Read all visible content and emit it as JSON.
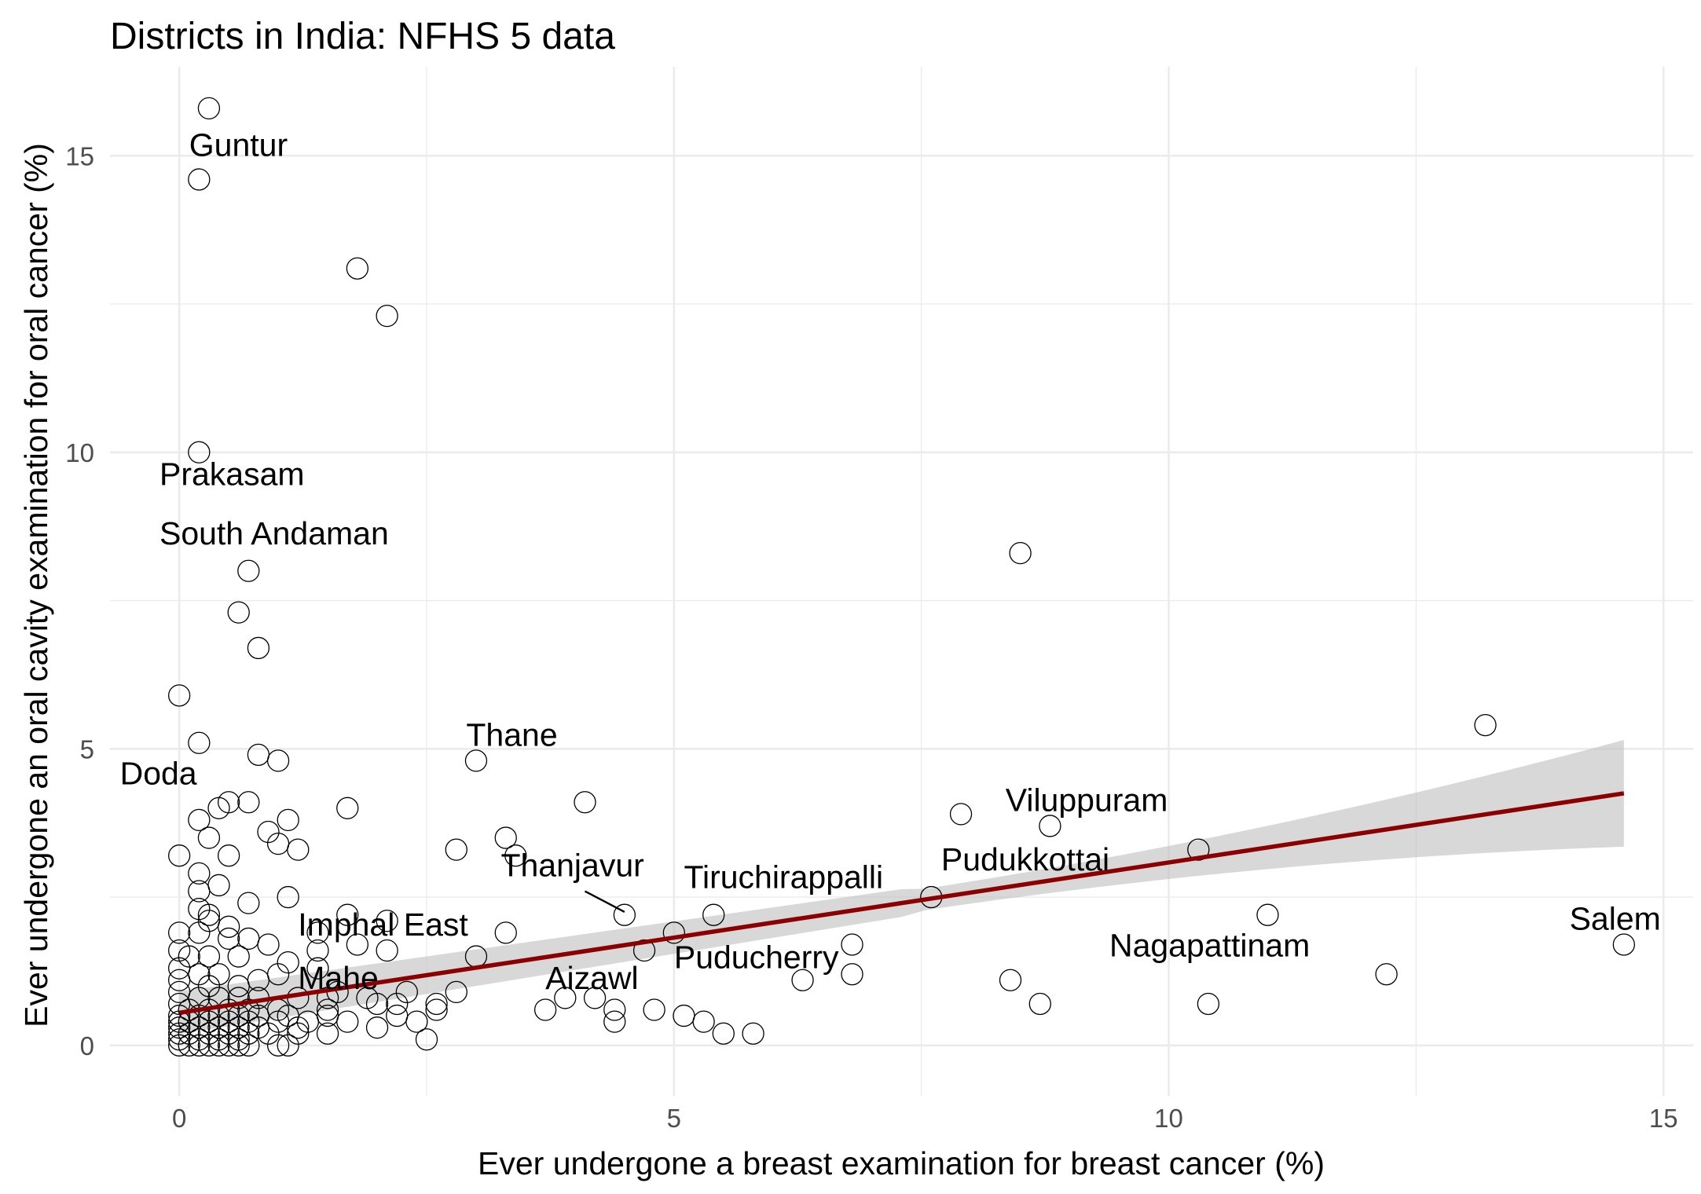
{
  "chart_data": {
    "type": "scatter",
    "title": "Districts in India: NFHS 5 data",
    "xlabel": "Ever undergone a breast examination for breast cancer (%)",
    "ylabel": "Ever undergone an oral cavity examination for oral cancer (%)",
    "xlim": [
      -0.7,
      15.3
    ],
    "ylim": [
      -0.85,
      16.5
    ],
    "x_ticks": [
      0,
      5,
      10,
      15
    ],
    "x_tick_labels": [
      "0",
      "5",
      "10",
      "15"
    ],
    "y_ticks": [
      0,
      5,
      10,
      15
    ],
    "y_tick_labels": [
      "0",
      "5",
      "10",
      "15"
    ],
    "grid": true,
    "colors": {
      "points": "#000000",
      "fit_line": "#8b0000",
      "confidence_band": "#bebebe",
      "grid": "#ebebeb",
      "tick_labels": "#4d4d4d"
    },
    "fit": {
      "method": "linear",
      "x_range": [
        0,
        14.6
      ],
      "intercept": 0.55,
      "slope": 0.2534,
      "se_at_min": 0.18,
      "se_at_max": 0.9
    },
    "points": [
      [
        0.3,
        15.8
      ],
      [
        0.2,
        14.6
      ],
      [
        1.8,
        13.1
      ],
      [
        2.1,
        12.3
      ],
      [
        0.2,
        10.0
      ],
      [
        8.5,
        8.3
      ],
      [
        0.7,
        8.0
      ],
      [
        0.6,
        7.3
      ],
      [
        0.8,
        6.7
      ],
      [
        0.0,
        5.9
      ],
      [
        0.2,
        5.1
      ],
      [
        13.2,
        5.4
      ],
      [
        3.0,
        4.8
      ],
      [
        0.8,
        4.9
      ],
      [
        1.0,
        4.8
      ],
      [
        0.4,
        4.0
      ],
      [
        0.5,
        4.1
      ],
      [
        0.7,
        4.1
      ],
      [
        0.2,
        3.8
      ],
      [
        0.3,
        3.5
      ],
      [
        1.1,
        3.8
      ],
      [
        1.7,
        4.0
      ],
      [
        4.1,
        4.1
      ],
      [
        7.9,
        3.9
      ],
      [
        8.8,
        3.7
      ],
      [
        0.9,
        3.6
      ],
      [
        1.0,
        3.4
      ],
      [
        1.2,
        3.3
      ],
      [
        0.0,
        3.2
      ],
      [
        0.5,
        3.2
      ],
      [
        2.8,
        3.3
      ],
      [
        3.3,
        3.5
      ],
      [
        3.4,
        3.2
      ],
      [
        10.3,
        3.3
      ],
      [
        0.2,
        2.9
      ],
      [
        0.4,
        2.7
      ],
      [
        0.2,
        2.6
      ],
      [
        1.1,
        2.5
      ],
      [
        0.7,
        2.4
      ],
      [
        7.6,
        2.5
      ],
      [
        0.2,
        2.3
      ],
      [
        0.3,
        2.1
      ],
      [
        0.3,
        2.2
      ],
      [
        1.7,
        2.2
      ],
      [
        2.1,
        2.1
      ],
      [
        4.5,
        2.2
      ],
      [
        5.4,
        2.2
      ],
      [
        11.0,
        2.2
      ],
      [
        0.5,
        2.0
      ],
      [
        0.2,
        1.9
      ],
      [
        0.0,
        1.9
      ],
      [
        3.3,
        1.9
      ],
      [
        5.0,
        1.9
      ],
      [
        1.4,
        1.9
      ],
      [
        0.5,
        1.8
      ],
      [
        0.7,
        1.8
      ],
      [
        0.9,
        1.7
      ],
      [
        1.4,
        1.6
      ],
      [
        1.8,
        1.7
      ],
      [
        2.1,
        1.6
      ],
      [
        6.8,
        1.7
      ],
      [
        14.6,
        1.7
      ],
      [
        4.7,
        1.6
      ],
      [
        3.0,
        1.5
      ],
      [
        0.0,
        1.6
      ],
      [
        0.1,
        1.5
      ],
      [
        0.3,
        1.5
      ],
      [
        0.6,
        1.5
      ],
      [
        1.1,
        1.4
      ],
      [
        0.0,
        1.3
      ],
      [
        0.2,
        1.2
      ],
      [
        0.4,
        1.2
      ],
      [
        1.0,
        1.2
      ],
      [
        1.4,
        1.3
      ],
      [
        0.0,
        1.1
      ],
      [
        0.3,
        1.0
      ],
      [
        0.6,
        1.0
      ],
      [
        0.8,
        1.1
      ],
      [
        6.3,
        1.1
      ],
      [
        6.8,
        1.2
      ],
      [
        8.4,
        1.1
      ],
      [
        12.2,
        1.2
      ],
      [
        2.8,
        0.9
      ],
      [
        2.3,
        0.9
      ],
      [
        1.6,
        0.9
      ],
      [
        0.0,
        0.9
      ],
      [
        0.2,
        0.8
      ],
      [
        0.4,
        0.8
      ],
      [
        0.6,
        0.8
      ],
      [
        0.8,
        0.8
      ],
      [
        1.2,
        0.8
      ],
      [
        1.5,
        0.8
      ],
      [
        1.9,
        0.8
      ],
      [
        2.2,
        0.7
      ],
      [
        2.6,
        0.7
      ],
      [
        3.9,
        0.8
      ],
      [
        4.2,
        0.8
      ],
      [
        8.7,
        0.7
      ],
      [
        10.4,
        0.7
      ],
      [
        0.0,
        0.7
      ],
      [
        0.1,
        0.6
      ],
      [
        0.3,
        0.6
      ],
      [
        0.5,
        0.6
      ],
      [
        0.7,
        0.6
      ],
      [
        1.0,
        0.6
      ],
      [
        1.5,
        0.6
      ],
      [
        2.0,
        0.7
      ],
      [
        2.6,
        0.6
      ],
      [
        3.7,
        0.6
      ],
      [
        4.4,
        0.6
      ],
      [
        4.8,
        0.6
      ],
      [
        5.1,
        0.5
      ],
      [
        0.0,
        0.5
      ],
      [
        0.2,
        0.5
      ],
      [
        0.4,
        0.5
      ],
      [
        0.6,
        0.5
      ],
      [
        0.8,
        0.5
      ],
      [
        1.1,
        0.5
      ],
      [
        1.5,
        0.5
      ],
      [
        2.2,
        0.5
      ],
      [
        0.0,
        0.4
      ],
      [
        0.1,
        0.4
      ],
      [
        0.3,
        0.4
      ],
      [
        0.5,
        0.4
      ],
      [
        0.7,
        0.4
      ],
      [
        1.0,
        0.4
      ],
      [
        1.3,
        0.4
      ],
      [
        1.7,
        0.4
      ],
      [
        2.0,
        0.3
      ],
      [
        2.4,
        0.4
      ],
      [
        4.4,
        0.4
      ],
      [
        5.3,
        0.4
      ],
      [
        0.0,
        0.3
      ],
      [
        0.2,
        0.3
      ],
      [
        0.4,
        0.3
      ],
      [
        0.6,
        0.3
      ],
      [
        0.8,
        0.3
      ],
      [
        1.2,
        0.3
      ],
      [
        5.5,
        0.2
      ],
      [
        5.8,
        0.2
      ],
      [
        0.0,
        0.2
      ],
      [
        0.1,
        0.2
      ],
      [
        0.3,
        0.2
      ],
      [
        0.5,
        0.2
      ],
      [
        0.7,
        0.2
      ],
      [
        0.9,
        0.2
      ],
      [
        1.2,
        0.2
      ],
      [
        1.5,
        0.2
      ],
      [
        0.0,
        0.1
      ],
      [
        0.2,
        0.1
      ],
      [
        0.4,
        0.1
      ],
      [
        0.6,
        0.1
      ],
      [
        2.5,
        0.1
      ],
      [
        0.0,
        0.0
      ],
      [
        0.1,
        0.0
      ],
      [
        0.2,
        0.0
      ],
      [
        0.3,
        0.0
      ],
      [
        0.4,
        0.0
      ],
      [
        0.5,
        0.0
      ],
      [
        0.6,
        0.0
      ],
      [
        0.7,
        0.0
      ],
      [
        1.0,
        0.0
      ],
      [
        1.1,
        0.0
      ]
    ],
    "labels": [
      {
        "text": "Guntur",
        "x": 0.1,
        "y": 15.0,
        "anchor": "start"
      },
      {
        "text": "Prakasam",
        "x": -0.2,
        "y": 9.45,
        "anchor": "start"
      },
      {
        "text": "South Andaman",
        "x": -0.2,
        "y": 8.45,
        "anchor": "start"
      },
      {
        "text": "Thane",
        "x": 2.9,
        "y": 5.05,
        "anchor": "start"
      },
      {
        "text": "Doda",
        "x": -0.6,
        "y": 4.4,
        "anchor": "start"
      },
      {
        "text": "Viluppuram",
        "x": 8.35,
        "y": 3.95,
        "anchor": "start"
      },
      {
        "text": "Thanjavur",
        "x": 3.25,
        "y": 2.85,
        "anchor": "start"
      },
      {
        "text": "Tiruchirappalli",
        "x": 5.1,
        "y": 2.65,
        "anchor": "start"
      },
      {
        "text": "Pudukkottai",
        "x": 7.7,
        "y": 2.95,
        "anchor": "start"
      },
      {
        "text": "Imphal East",
        "x": 1.2,
        "y": 1.85,
        "anchor": "start"
      },
      {
        "text": "Salem",
        "x": 14.05,
        "y": 1.95,
        "anchor": "start"
      },
      {
        "text": "Nagapattinam",
        "x": 9.4,
        "y": 1.5,
        "anchor": "start"
      },
      {
        "text": "Puducherry",
        "x": 5.0,
        "y": 1.3,
        "anchor": "start"
      },
      {
        "text": "Mahe",
        "x": 1.2,
        "y": 0.95,
        "anchor": "start"
      },
      {
        "text": "Aizawl",
        "x": 3.7,
        "y": 0.95,
        "anchor": "start"
      }
    ],
    "leaders": [
      {
        "from": [
          4.1,
          2.6
        ],
        "to": [
          4.5,
          2.25
        ]
      }
    ]
  }
}
